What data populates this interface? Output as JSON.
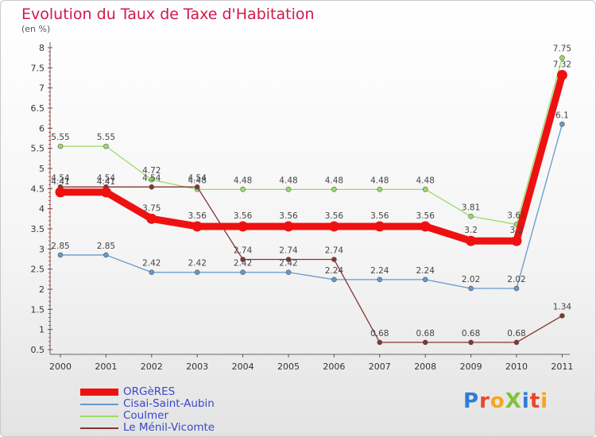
{
  "header": {
    "title": "Evolution du Taux de Taxe d'Habitation",
    "subtitle": "(en %)"
  },
  "chart_data": {
    "type": "line",
    "title": "Evolution du Taux de Taxe d'Habitation",
    "ylabel": "(en %)",
    "xlabel": "",
    "categories": [
      "2000",
      "2001",
      "2002",
      "2003",
      "2004",
      "2005",
      "2006",
      "2007",
      "2008",
      "2009",
      "2010",
      "2011"
    ],
    "ylim": [
      0.5,
      8
    ],
    "yticks": [
      "8",
      "7.5",
      "7",
      "6.5",
      "6",
      "5.5",
      "5",
      "4.5",
      "4",
      "3.5",
      "3",
      "2.5",
      "2",
      "1.5",
      "1",
      "0.5"
    ],
    "grid": false,
    "legend_position": "bottom-left",
    "series": [
      {
        "name": "ORGèRES",
        "color": "#ee1111",
        "emphasis": true,
        "values": [
          4.41,
          4.41,
          3.75,
          3.56,
          3.56,
          3.56,
          3.56,
          3.56,
          3.56,
          3.2,
          3.2,
          7.32
        ],
        "labels": [
          "4.41",
          "4.41",
          "3.75",
          "3.56",
          "3.56",
          "3.56",
          "3.56",
          "3.56",
          "3.56",
          "3.2",
          "3.2",
          "7.32"
        ]
      },
      {
        "name": "Cisai-Saint-Aubin",
        "color": "#6699cc",
        "values": [
          2.85,
          2.85,
          2.42,
          2.42,
          2.42,
          2.42,
          2.24,
          2.24,
          2.24,
          2.02,
          2.02,
          6.1
        ],
        "labels": [
          "2.85",
          "2.85",
          "2.42",
          "2.42",
          "2.42",
          "2.42",
          "2.24",
          "2.24",
          "2.24",
          "2.02",
          "2.02",
          "6.1"
        ]
      },
      {
        "name": "Coulmer",
        "color": "#99dd66",
        "values": [
          5.55,
          5.55,
          4.72,
          4.48,
          4.48,
          4.48,
          4.48,
          4.48,
          4.48,
          3.81,
          3.61,
          7.75
        ],
        "labels": [
          "5.55",
          "5.55",
          "4.72",
          "4.48",
          "4.48",
          "4.48",
          "4.48",
          "4.48",
          "4.48",
          "3.81",
          "3.61",
          "7.75"
        ]
      },
      {
        "name": "Le Ménil-Vicomte",
        "color": "#883333",
        "values": [
          4.54,
          4.54,
          4.54,
          4.54,
          2.74,
          2.74,
          2.74,
          0.68,
          0.68,
          0.68,
          0.68,
          1.34
        ],
        "labels": [
          "4.54",
          "4.54",
          "4.54",
          "4.54",
          "2.74",
          "2.74",
          "2.74",
          "0.68",
          "0.68",
          "0.68",
          "0.68",
          "1.34"
        ]
      }
    ]
  },
  "brand": {
    "logo_text": "ProXiti",
    "letter_colors": [
      "#2e7bd8",
      "#e8472a",
      "#f2a81d",
      "#7ec33a",
      "#2e7bd8",
      "#e8472a",
      "#f2a81d"
    ]
  }
}
